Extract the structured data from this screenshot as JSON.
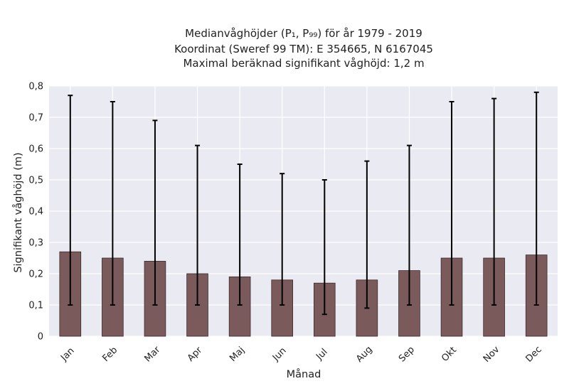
{
  "chart_data": {
    "type": "bar",
    "title_lines": [
      "Medianvåghöjder (P₁, P₉₉) för år 1979 - 2019",
      "Koordinat (Sweref 99 TM): E 354665, N 6167045",
      "Maximal beräknad signifikant våghöjd: 1,2 m"
    ],
    "xlabel": "Månad",
    "ylabel": "Signifikant våghöjd (m)",
    "categories": [
      "Jan",
      "Feb",
      "Mar",
      "Apr",
      "Maj",
      "Jun",
      "Jul",
      "Aug",
      "Sep",
      "Okt",
      "Nov",
      "Dec"
    ],
    "values": [
      0.27,
      0.25,
      0.24,
      0.2,
      0.19,
      0.18,
      0.17,
      0.18,
      0.21,
      0.25,
      0.25,
      0.26
    ],
    "p1": [
      0.1,
      0.1,
      0.1,
      0.1,
      0.1,
      0.1,
      0.07,
      0.09,
      0.1,
      0.1,
      0.1,
      0.1
    ],
    "p99": [
      0.77,
      0.75,
      0.69,
      0.61,
      0.55,
      0.52,
      0.5,
      0.56,
      0.61,
      0.75,
      0.76,
      0.78
    ],
    "ylim": [
      0,
      0.8
    ],
    "yticks": [
      0,
      0.1,
      0.2,
      0.3,
      0.4,
      0.5,
      0.6,
      0.7,
      0.8
    ],
    "ytick_labels": [
      "0",
      "0,1",
      "0,2",
      "0,3",
      "0,4",
      "0,5",
      "0,6",
      "0,7",
      "0,8"
    ],
    "grid": true,
    "colors": {
      "bar": "#7b5a5c",
      "bar_edge": "#3a2a2b",
      "errorbar": "#000000",
      "background": "#eaeaf2",
      "grid": "#ffffff"
    }
  }
}
